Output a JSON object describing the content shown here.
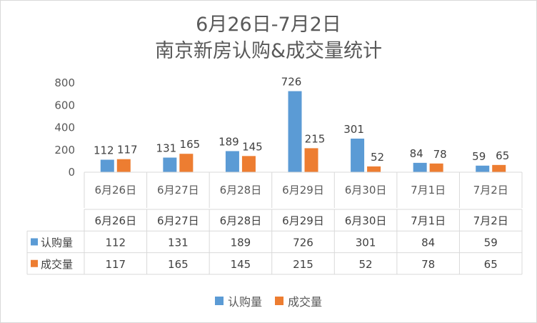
{
  "chart_data": {
    "type": "bar",
    "title_line1": "6月26日-7月2日",
    "title_line2": "南京新房认购&成交量统计",
    "categories": [
      "6月26日",
      "6月27日",
      "6月28日",
      "6月29日",
      "6月30日",
      "7月1日",
      "7月2日"
    ],
    "series": [
      {
        "name": "认购量",
        "color": "#5b9bd5",
        "values": [
          112,
          131,
          189,
          726,
          301,
          84,
          59
        ]
      },
      {
        "name": "成交量",
        "color": "#ed7d31",
        "values": [
          117,
          165,
          145,
          215,
          52,
          78,
          65
        ]
      }
    ],
    "xlabel": "",
    "ylabel": "",
    "ylim": [
      0,
      800
    ],
    "yticks": [
      0,
      200,
      400,
      600,
      800
    ],
    "grid": false,
    "legend_position": "bottom",
    "data_table": true
  }
}
